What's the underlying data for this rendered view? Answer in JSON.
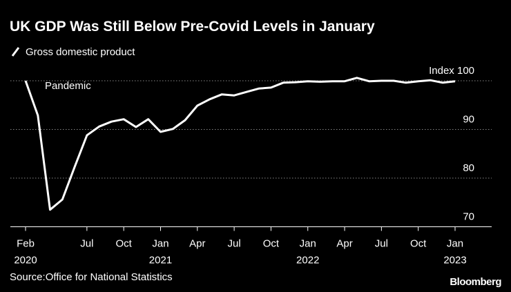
{
  "chart_data": {
    "type": "line",
    "title": "UK GDP Was Still Below Pre-Covid Levels in January",
    "source": "Source:Office for National Statistics",
    "brand": "Bloomberg",
    "annotation": "Pandemic",
    "categories": [
      "Feb",
      null,
      null,
      null,
      null,
      "Jul",
      null,
      null,
      "Oct",
      null,
      null,
      "Jan",
      null,
      null,
      "Apr",
      null,
      null,
      "Jul",
      null,
      null,
      "Oct",
      null,
      null,
      "Jan",
      null,
      null,
      "Apr",
      null,
      null,
      "Jul",
      null,
      null,
      "Oct",
      null,
      null,
      "Jan"
    ],
    "category_years": [
      "2020",
      null,
      null,
      null,
      null,
      null,
      null,
      null,
      null,
      null,
      null,
      "2021",
      null,
      null,
      null,
      null,
      null,
      null,
      null,
      null,
      null,
      null,
      null,
      "2022",
      null,
      null,
      null,
      null,
      null,
      null,
      null,
      null,
      null,
      null,
      null,
      "2023"
    ],
    "series": [
      {
        "name": "Gross domestic product",
        "color": "#ffffff",
        "values": [
          100,
          92.9,
          73.5,
          75.6,
          82.3,
          88.8,
          90.6,
          91.6,
          92.1,
          90.5,
          92.1,
          89.5,
          90.1,
          91.9,
          94.9,
          96.2,
          97.2,
          97.0,
          97.7,
          98.4,
          98.6,
          99.6,
          99.7,
          99.9,
          99.8,
          99.9,
          99.9,
          100.6,
          99.9,
          100,
          100,
          99.6,
          99.9,
          100.1,
          99.6,
          99.9
        ]
      }
    ],
    "ylim": [
      70,
      100
    ],
    "yticks": [
      70,
      80,
      90,
      {
        "value": 100,
        "label": "Index 100"
      }
    ],
    "grid": true
  }
}
